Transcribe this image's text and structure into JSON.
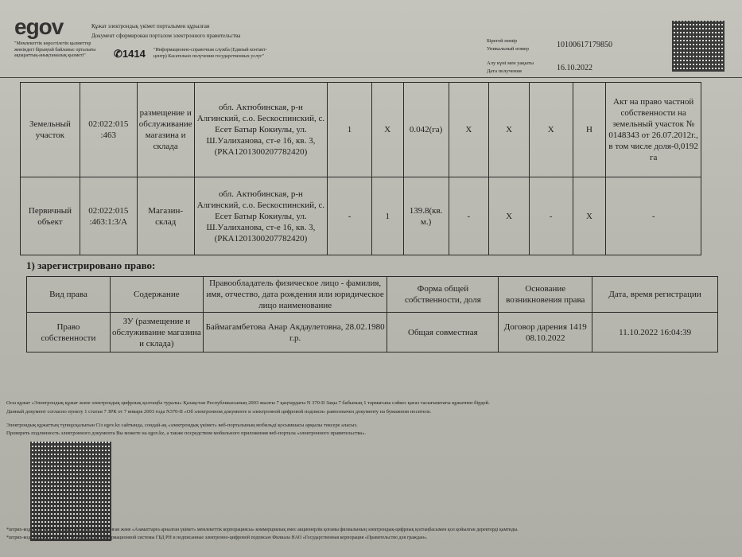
{
  "header": {
    "logo": "egov",
    "portal_kz": "Құжат электрондық үкімет порталымен құрылған",
    "portal_ru": "Документ сформирован порталом электронного правительства",
    "center_kz": "\"Мемлекеттік көрсетілетін қызметтер жөніндегі бірыңғай байланыс орталығы ақпараттық-анықтамалық қызметі\"",
    "phone": "1414",
    "center_ru": "\"Информационно-справочная служба (Единый контакт-центр) Касательно получения государственных услуг\"",
    "unique_number_label_kz": "Бірегей нөмір",
    "unique_number_label_ru": "Уникальный номер",
    "unique_number": "10100617179850",
    "date_label_kz": "Алу күні мен уақыты",
    "date_label_ru": "Дата получения",
    "date": "16.10.2022"
  },
  "objects_table": {
    "rows": [
      [
        "Земельный участок",
        "02:022:015 :463",
        "размещение и обслуживание магазина и склада",
        "обл. Актюбинская, р-н Алгинский, с.о. Бескоспинский, с. Есет Батыр Кокиулы, ул. Ш.Уалиханова, ст-е 16, кв. 3, (РКА1201300207782420)",
        "1",
        "X",
        "0.042(га)",
        "X",
        "X",
        "X",
        "Н",
        "Акт на право частной собственности на земельный участок № 0148343 от 26.07.2012г., в том числе доля-0,0192 га"
      ],
      [
        "Первичный объект",
        "02:022:015 :463:1:3/А",
        "Магазин-склад",
        "обл. Актюбинская, р-н Алгинский, с.о. Бескоспинский, с. Есет Батыр Кокиулы, ул. Ш.Уалиханова, ст-е 16, кв. 3, (РКА1201300207782420)",
        "-",
        "1",
        "139.8(кв. м.)",
        "-",
        "X",
        "-",
        "X",
        "-"
      ]
    ]
  },
  "rights": {
    "title": "1) зарегистрировано право:",
    "headers": [
      "Вид права",
      "Содержание",
      "Правообладатель физическое лицо - фамилия, имя, отчество, дата рождения или юридическое лицо наименование",
      "Формa общей собственности, доля",
      "Основание возникновения права",
      "Дата, время регистрации"
    ],
    "row": [
      "Право собственности",
      "ЗУ (размещение и обслуживание магазина и склада)",
      "Баймагамбетова Анар Акдаулетовна, 28.02.1980 г.р.",
      "Общая совместная",
      "Договор дарения 1419 08.10.2022",
      "11.10.2022 16:04:39"
    ]
  },
  "footer": {
    "line1": "Осы құжат «Электрондық құжат және электрондық цифрлық қолтаңба туралы» Қазақстан Республикасының 2003 жылғы 7 қаңтардағы N 370-II Заңы 7 бабының 1 тармағына сәйкес қағаз тасығыштағы құжатпен бірдей.",
    "line2": "Данный документ согласно пункту 1 статьи 7 ЗРК от 7 января 2003 года N370-II «Об электронном документе и электронной цифровой подписи» равнозначен документу на бумажном носителе.",
    "line3": "Электрондық құжаттың түпнұсқалығын Сіз egov.kz сайтында, сондай-ақ «электрондық үкімет» веб-порталының мобильді қосымшасы арқылы тексере аласыз.",
    "line4": "Проверить подлинность электронного документа Вы можете на egov.kz, а также посредством мобильного приложения веб-портала «электронного правительства».",
    "line5": "*штрих-код ЖМТ МДҚ ақпараттық жүйесінен алынған және «Азаматтарға арналған үкімет» мемлекеттік корпорациясы» коммерциялық емес акционерлік қоғамы филиалының электрондық-цифрлық қолтаңбасымен қол қойылған деректерді қамтиды.",
    "line6": "*штрих-код содержит данные, полученные из информационной системы ГБД РН и подписанные электронно-цифровой подписью Филиала НАО «Государственная корпорация «Правительство для граждан»."
  }
}
